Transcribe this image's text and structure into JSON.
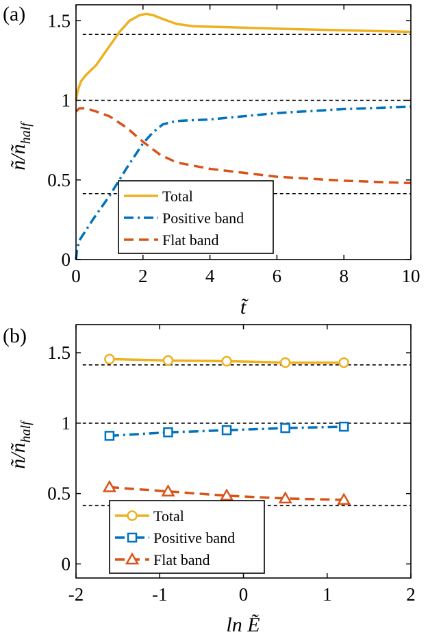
{
  "chart_data": [
    {
      "panel_label": "(a)",
      "type": "line",
      "xlabel": "t̃",
      "ylabel": "ñ/ñ",
      "ylabel_sub": "half",
      "xlim": [
        0,
        10
      ],
      "ylim": [
        0,
        1.6
      ],
      "xticks": [
        "0",
        "2",
        "4",
        "6",
        "8",
        "10"
      ],
      "yticks": [
        "0",
        "0.5",
        "1",
        "1.5"
      ],
      "xtick_values": [
        0,
        2,
        4,
        6,
        8,
        10
      ],
      "ytick_values": [
        0,
        0.5,
        1,
        1.5
      ],
      "reference_lines": [
        1.414,
        1.0,
        0.414
      ],
      "legend": {
        "position": "lower-left-center",
        "entries": [
          "Total",
          "Positive band",
          "Flat band"
        ]
      },
      "series": [
        {
          "name": "Total",
          "color": "#EDB120",
          "style": "solid",
          "marker": "none",
          "x": [
            0,
            0.05,
            0.15,
            0.3,
            0.6,
            1.0,
            1.3,
            1.6,
            1.9,
            2.1,
            2.3,
            2.6,
            3.0,
            3.5,
            4.5,
            6,
            8,
            10
          ],
          "y": [
            1.0,
            1.06,
            1.12,
            1.16,
            1.22,
            1.34,
            1.43,
            1.5,
            1.535,
            1.543,
            1.535,
            1.51,
            1.48,
            1.465,
            1.46,
            1.45,
            1.44,
            1.43
          ]
        },
        {
          "name": "Positive band",
          "color": "#0072BD",
          "style": "dashdot",
          "marker": "none",
          "x": [
            0,
            0.03,
            0.1,
            0.5,
            1.0,
            1.5,
            2.0,
            2.3,
            2.6,
            3.0,
            4,
            6,
            8,
            10
          ],
          "y": [
            0,
            0.06,
            0.12,
            0.25,
            0.4,
            0.57,
            0.73,
            0.8,
            0.85,
            0.87,
            0.88,
            0.92,
            0.945,
            0.96
          ]
        },
        {
          "name": "Flat band",
          "color": "#D95319",
          "style": "dashed",
          "marker": "none",
          "x": [
            0,
            0.1,
            0.3,
            0.6,
            1.0,
            1.5,
            2.0,
            2.5,
            3.0,
            4,
            5,
            6,
            8,
            10
          ],
          "y": [
            0.93,
            0.95,
            0.95,
            0.93,
            0.9,
            0.83,
            0.74,
            0.66,
            0.61,
            0.57,
            0.545,
            0.52,
            0.495,
            0.48
          ]
        }
      ]
    },
    {
      "panel_label": "(b)",
      "type": "line",
      "xlabel": "ln Ẽ",
      "ylabel": "ñ/ñ",
      "ylabel_sub": "half",
      "xlim": [
        -2,
        2
      ],
      "ylim": [
        -0.1,
        1.7
      ],
      "xticks": [
        "-2",
        "-1",
        "0",
        "1",
        "2"
      ],
      "yticks": [
        "0",
        "0.5",
        "1",
        "1.5"
      ],
      "xtick_values": [
        -2,
        -1,
        0,
        1,
        2
      ],
      "ytick_values": [
        0,
        0.5,
        1,
        1.5
      ],
      "reference_lines": [
        1.414,
        1.0,
        0.414
      ],
      "legend": {
        "position": "lower-left-center",
        "entries": [
          "Total",
          "Positive band",
          "Flat band"
        ]
      },
      "series": [
        {
          "name": "Total",
          "color": "#EDB120",
          "style": "solid",
          "marker": "circle",
          "x": [
            -1.6,
            -0.9,
            -0.2,
            0.5,
            1.2
          ],
          "y": [
            1.455,
            1.445,
            1.44,
            1.43,
            1.43
          ]
        },
        {
          "name": "Positive band",
          "color": "#0072BD",
          "style": "dashdot",
          "marker": "square",
          "x": [
            -1.6,
            -0.9,
            -0.2,
            0.5,
            1.2
          ],
          "y": [
            0.91,
            0.935,
            0.95,
            0.965,
            0.975
          ]
        },
        {
          "name": "Flat band",
          "color": "#D95319",
          "style": "dashed",
          "marker": "triangle",
          "x": [
            -1.6,
            -0.9,
            -0.2,
            0.5,
            1.2
          ],
          "y": [
            0.545,
            0.515,
            0.485,
            0.465,
            0.455
          ]
        }
      ]
    }
  ]
}
